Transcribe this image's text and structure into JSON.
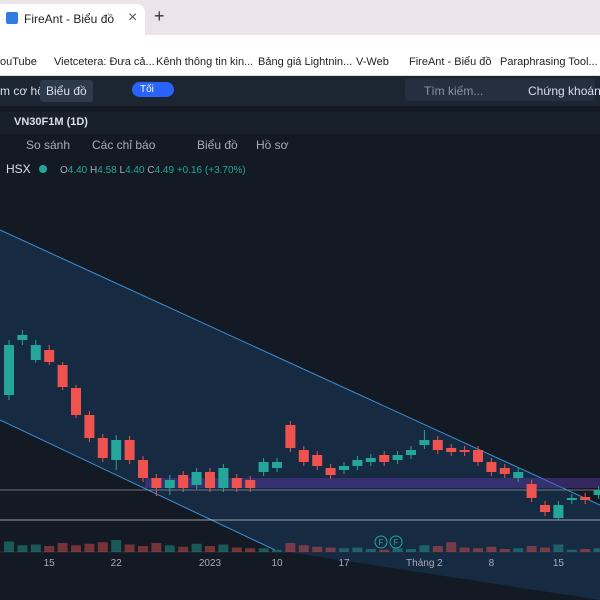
{
  "browser": {
    "tab_title": "FireAnt - Biểu đồ",
    "close": "×",
    "new_tab": "+"
  },
  "bookmarks": [
    "ouTube",
    "Vietcetera: Đưa cả...",
    "Kênh thông tin kin...",
    "Bảng giá Lightnin...",
    "V-Web",
    "FireAnt - Biểu đồ",
    "Paraphrasing Tool..."
  ],
  "app_toolbar": {
    "tab_left": "m cơ hội",
    "tab_active": "Biểu đồ",
    "theme": "Tối",
    "search": "Tìm kiếm...",
    "market": "Chứng khoán"
  },
  "chart_header": {
    "symbol": "VN30F1M (1D)"
  },
  "chart_toolbar": {
    "compare": "So sánh",
    "indicators": "Các chỉ báo",
    "chart": "Biểu đồ",
    "profile": "Hồ sơ"
  },
  "legend": {
    "exchange": "HSX",
    "o_label": "O",
    "o": "4.40",
    "h_label": "H",
    "h": "4.58",
    "l_label": "L",
    "l": "4.40",
    "c_label": "C",
    "c": "4.49",
    "change": "+0.16 (+3.70%)"
  },
  "markers": [
    "F",
    "F"
  ],
  "chart_data": {
    "type": "candlestick",
    "categories": [
      null,
      null,
      null,
      "15",
      null,
      null,
      null,
      null,
      "22",
      null,
      null,
      null,
      null,
      null,
      null,
      "2023",
      null,
      null,
      null,
      null,
      "10",
      null,
      null,
      null,
      null,
      "17",
      null,
      null,
      null,
      null,
      null,
      "Tháng 2",
      null,
      null,
      null,
      null,
      "8",
      null,
      null,
      null,
      null,
      "15",
      null,
      null,
      null
    ],
    "open": [
      1050,
      1072,
      1064,
      1068,
      1062,
      1052.8,
      1042,
      1032.8,
      1024,
      1032,
      1024,
      1016.8,
      1012.8,
      1018,
      1014,
      1019.2,
      1012.8,
      1016.8,
      1016,
      1019.2,
      1020.8,
      1038,
      1028,
      1026,
      1020.8,
      1020,
      1021.6,
      1023.2,
      1026,
      1024,
      1026,
      1030,
      1032,
      1028.8,
      1028,
      1028,
      1023.2,
      1020.8,
      1016.8,
      1014.4,
      1006,
      1000.8,
      1008,
      1009.2,
      1010
    ],
    "high": [
      1072,
      1076,
      1072,
      1070,
      1063.2,
      1054,
      1043.6,
      1034.4,
      1034,
      1033.6,
      1025.6,
      1018.4,
      1018,
      1019.6,
      1020.8,
      1020.8,
      1022.4,
      1018.4,
      1017.6,
      1024.8,
      1024.8,
      1039.6,
      1029.6,
      1027.6,
      1022.4,
      1023.2,
      1025.6,
      1026.4,
      1027.6,
      1027.6,
      1029.6,
      1036,
      1033.6,
      1030.4,
      1029.6,
      1029.6,
      1024.8,
      1022.4,
      1020.8,
      1016,
      1007.6,
      1007.6,
      1010.4,
      1010.8,
      1013.6
    ],
    "low": [
      1048,
      1070,
      1063,
      1062,
      1052,
      1040.8,
      1031.2,
      1023.2,
      1020,
      1022.4,
      1015.2,
      1009.6,
      1010,
      1011.2,
      1012.4,
      1011.2,
      1011.2,
      1011.2,
      1011.2,
      1017.6,
      1019.2,
      1027.2,
      1021.6,
      1020,
      1016.4,
      1018.4,
      1020,
      1021.6,
      1021.6,
      1022.4,
      1024.4,
      1028.4,
      1026.4,
      1025.6,
      1025.6,
      1021.6,
      1017.6,
      1016.8,
      1015.2,
      1007.2,
      1001.6,
      1000,
      1006.4,
      1006.4,
      1008.4
    ],
    "close": [
      1070,
      1074,
      1070,
      1063.2,
      1053.2,
      1042,
      1032.8,
      1024.8,
      1032,
      1024,
      1016.8,
      1012.8,
      1016,
      1012.8,
      1019.2,
      1012.8,
      1020.8,
      1012.8,
      1012.8,
      1023.2,
      1023.2,
      1028.8,
      1023.2,
      1021.6,
      1018,
      1021.6,
      1024,
      1024.8,
      1023.2,
      1026,
      1028,
      1032,
      1028,
      1027.2,
      1027.2,
      1023.2,
      1019.2,
      1018.4,
      1019.2,
      1008.8,
      1003.2,
      1006,
      1008.8,
      1008,
      1012
    ],
    "volume": [
      14000,
      9000,
      10000,
      8000,
      12000,
      9000,
      11000,
      13000,
      16000,
      10000,
      8000,
      12000,
      9000,
      7000,
      11000,
      8000,
      10000,
      6000,
      5000,
      5000,
      3000,
      12000,
      9000,
      7000,
      6000,
      5000,
      6000,
      4000,
      3000,
      5000,
      4000,
      9000,
      8000,
      13000,
      6000,
      5000,
      7000,
      4000,
      5000,
      8000,
      6000,
      10000,
      3000,
      4000,
      5000
    ],
    "ylim": [
      1000,
      1130
    ],
    "volume_lim": [
      0,
      40000
    ],
    "up_color": "#26a69a",
    "down_color": "#ef5350"
  }
}
